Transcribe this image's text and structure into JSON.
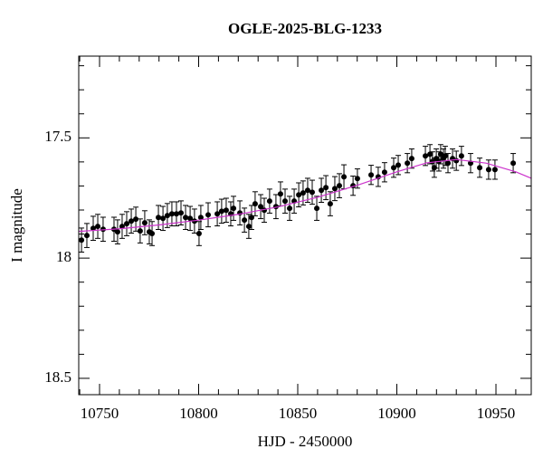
{
  "chart_data": {
    "type": "scatter",
    "title": "OGLE-2025-BLG-1233",
    "x_label": "HJD - 2450000",
    "y_label": "I magnitude",
    "xlim": [
      10739.5,
      10967.8
    ],
    "ylim": [
      17.16,
      18.568
    ],
    "y_inverted": true,
    "xticks": [
      10750,
      10800,
      10850,
      10900,
      10950
    ],
    "yticks": [
      17.5,
      18,
      18.5
    ],
    "xminorticks": [
      10740,
      10760,
      10770,
      10780,
      10790,
      10810,
      10820,
      10830,
      10840,
      10860,
      10870,
      10880,
      10890,
      10910,
      10920,
      10930,
      10940,
      10960
    ],
    "yminorticks": [
      17.2,
      17.3,
      17.4,
      17.6,
      17.7,
      17.8,
      17.9,
      18.1,
      18.2,
      18.3,
      18.4
    ],
    "series": [
      {
        "type": "scatter",
        "color": "#000000",
        "x": [
          10740.9,
          10743.6,
          10746.8,
          10749.1,
          10751.8,
          10757.3,
          10759.1,
          10761.4,
          10763.7,
          10766.0,
          10768.3,
          10770.5,
          10772.8,
          10775.1,
          10776.5,
          10779.7,
          10782.0,
          10784.2,
          10786.5,
          10788.8,
          10791.1,
          10793.4,
          10795.7,
          10797.9,
          10800.2,
          10801.1,
          10804.8,
          10809.4,
          10811.6,
          10813.9,
          10816.2,
          10817.6,
          10820.8,
          10823.1,
          10825.3,
          10826.7,
          10828.5,
          10831.3,
          10833.1,
          10835.8,
          10839.0,
          10841.3,
          10843.6,
          10845.9,
          10848.2,
          10850.5,
          10852.7,
          10855.0,
          10857.3,
          10859.6,
          10861.9,
          10864.2,
          10866.4,
          10868.7,
          10871.0,
          10873.3,
          10877.9,
          10880.1,
          10887.0,
          10890.6,
          10893.8,
          10898.4,
          10900.7,
          10905.3,
          10907.5,
          10914.4,
          10916.7,
          10918.0,
          10918.9,
          10919.9,
          10921.2,
          10922.1,
          10923.5,
          10924.4,
          10925.8,
          10928.1,
          10932.6,
          10937.2,
          10941.8,
          10946.3,
          10949.5,
          10958.7,
          10930.0
        ],
        "y": [
          17.925,
          17.906,
          17.876,
          17.868,
          17.88,
          17.88,
          17.891,
          17.868,
          17.857,
          17.846,
          17.838,
          17.887,
          17.853,
          17.891,
          17.898,
          17.831,
          17.835,
          17.823,
          17.816,
          17.816,
          17.812,
          17.831,
          17.835,
          17.846,
          17.898,
          17.831,
          17.82,
          17.816,
          17.805,
          17.801,
          17.816,
          17.793,
          17.812,
          17.842,
          17.868,
          17.831,
          17.774,
          17.786,
          17.801,
          17.763,
          17.786,
          17.733,
          17.763,
          17.793,
          17.763,
          17.737,
          17.729,
          17.718,
          17.726,
          17.793,
          17.718,
          17.707,
          17.774,
          17.711,
          17.699,
          17.662,
          17.699,
          17.669,
          17.654,
          17.662,
          17.643,
          17.624,
          17.613,
          17.605,
          17.586,
          17.575,
          17.568,
          17.598,
          17.624,
          17.586,
          17.598,
          17.568,
          17.586,
          17.575,
          17.605,
          17.586,
          17.575,
          17.605,
          17.624,
          17.632,
          17.632,
          17.605,
          17.595
        ],
        "errors": [
          0.05,
          0.05,
          0.05,
          0.05,
          0.05,
          0.05,
          0.05,
          0.05,
          0.05,
          0.05,
          0.05,
          0.05,
          0.05,
          0.05,
          0.05,
          0.05,
          0.05,
          0.05,
          0.05,
          0.05,
          0.05,
          0.05,
          0.05,
          0.05,
          0.05,
          0.05,
          0.05,
          0.05,
          0.05,
          0.05,
          0.05,
          0.05,
          0.05,
          0.05,
          0.05,
          0.05,
          0.05,
          0.05,
          0.05,
          0.05,
          0.05,
          0.05,
          0.05,
          0.05,
          0.05,
          0.05,
          0.05,
          0.05,
          0.05,
          0.05,
          0.05,
          0.05,
          0.05,
          0.05,
          0.05,
          0.05,
          0.04,
          0.04,
          0.04,
          0.04,
          0.04,
          0.04,
          0.04,
          0.04,
          0.04,
          0.04,
          0.04,
          0.04,
          0.04,
          0.04,
          0.04,
          0.04,
          0.04,
          0.04,
          0.04,
          0.04,
          0.04,
          0.04,
          0.04,
          0.04,
          0.04,
          0.04,
          0.04
        ]
      },
      {
        "type": "line",
        "color": "#cc33cc",
        "x": [
          10739.5,
          10760,
          10780,
          10800,
          10820,
          10840,
          10860,
          10880,
          10900,
          10915,
          10930,
          10945,
          10960,
          10967.8
        ],
        "y": [
          17.889,
          17.878,
          17.862,
          17.842,
          17.818,
          17.787,
          17.747,
          17.697,
          17.641,
          17.604,
          17.59,
          17.605,
          17.641,
          17.668
        ]
      }
    ]
  }
}
